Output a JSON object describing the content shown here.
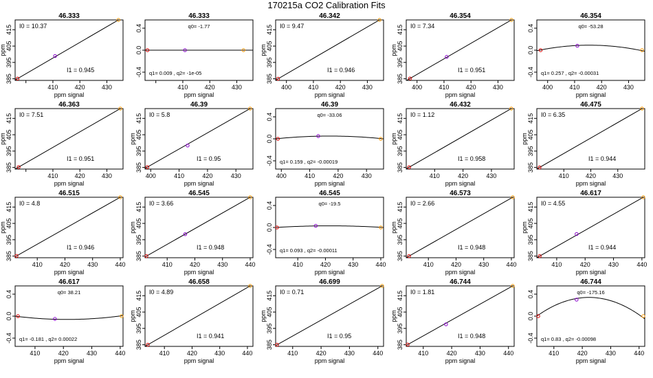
{
  "figure_title": "170215a   CO2 Calibration Fits",
  "colors": {
    "point_low": "#dd0000",
    "point_mid": "#8800cc",
    "point_high": "#ff9900",
    "line": "#000000"
  },
  "chart_data": [
    {
      "type": "line",
      "fit": "linear",
      "title": "46.333",
      "xlabel": "ppm signal",
      "ylabel": "ppm",
      "xlim": [
        396,
        436
      ],
      "ylim": [
        384,
        421
      ],
      "xticks": [
        400,
        410,
        420,
        430
      ],
      "xticklabels": [
        "",
        "410",
        "420",
        "430"
      ],
      "yticks": [
        385,
        395,
        405,
        415
      ],
      "points": [
        [
          396.9,
          385.1
        ],
        [
          410.8,
          398.9
        ],
        [
          434.3,
          421.0
        ]
      ],
      "annotations": {
        "i0": "I0 =  10.37",
        "i1": "I1 =  0.945"
      }
    },
    {
      "type": "line",
      "fit": "quadratic",
      "title": "46.333",
      "xlabel": "ppm signal",
      "ylabel": "",
      "xlim": [
        396,
        436
      ],
      "ylim": [
        -0.55,
        0.55
      ],
      "xticks": [
        400,
        410,
        420,
        430
      ],
      "xticklabels": [
        "",
        "410",
        "420",
        "430"
      ],
      "yticks": [
        -0.4,
        0.0,
        0.4
      ],
      "points": [
        [
          396.9,
          0.0
        ],
        [
          410.8,
          0.0
        ],
        [
          432.5,
          0.0
        ]
      ],
      "curve": [
        [
          396,
          0.0
        ],
        [
          410.8,
          0.0
        ],
        [
          436,
          0.0
        ]
      ],
      "annotations": {
        "q0": "q0= -1.77",
        "q12": "q1= 0.009 , q2= -1e-05"
      }
    },
    {
      "type": "line",
      "fit": "linear",
      "title": "46.342",
      "xlabel": "ppm signal",
      "ylabel": "ppm",
      "xlim": [
        396,
        436
      ],
      "ylim": [
        384,
        421
      ],
      "xticks": [
        400,
        410,
        420,
        430
      ],
      "xticklabels": [
        "400",
        "410",
        "420",
        "430"
      ],
      "yticks": [
        385,
        395,
        405,
        415
      ],
      "points": [
        [
          396.9,
          385.0
        ],
        [
          434.5,
          421.0
        ]
      ],
      "annotations": {
        "i0": "I0 =  9.47",
        "i1": "I1 =  0.946"
      }
    },
    {
      "type": "line",
      "fit": "linear",
      "title": "46.354",
      "xlabel": "ppm signal",
      "ylabel": "ppm",
      "xlim": [
        396,
        436
      ],
      "ylim": [
        384,
        421
      ],
      "xticks": [
        400,
        410,
        420,
        430
      ],
      "xticklabels": [
        "400",
        "410",
        "420",
        "430"
      ],
      "yticks": [
        385,
        395,
        405,
        415
      ],
      "points": [
        [
          397.4,
          385.2
        ],
        [
          411.0,
          398.4
        ],
        [
          435.0,
          421.0
        ]
      ],
      "annotations": {
        "i0": "I0 =  7.34",
        "i1": "I1 =  0.951"
      }
    },
    {
      "type": "line",
      "fit": "quadratic",
      "title": "46.354",
      "xlabel": "ppm signal",
      "ylabel": "",
      "xlim": [
        396,
        436
      ],
      "ylim": [
        -0.55,
        0.55
      ],
      "xticks": [
        400,
        410,
        420,
        430
      ],
      "xticklabels": [
        "400",
        "410",
        "420",
        "430"
      ],
      "yticks": [
        -0.4,
        0.0,
        0.4
      ],
      "points": [
        [
          397.4,
          0.0
        ],
        [
          411.0,
          0.08
        ],
        [
          435.0,
          0.0
        ]
      ],
      "curve": [
        [
          396,
          -0.01
        ],
        [
          414,
          0.09
        ],
        [
          436,
          -0.02
        ]
      ],
      "annotations": {
        "q0": "q0= -53.28",
        "q12": "q1= 0.257 , q2= -0.00031"
      }
    },
    {
      "type": "line",
      "fit": "linear",
      "title": "46.363",
      "xlabel": "ppm signal",
      "ylabel": "ppm",
      "xlim": [
        396,
        436
      ],
      "ylim": [
        384,
        421
      ],
      "xticks": [
        400,
        410,
        420,
        430
      ],
      "xticklabels": [
        "",
        "410",
        "420",
        "430"
      ],
      "yticks": [
        385,
        395,
        405,
        415
      ],
      "points": [
        [
          397.3,
          385.2
        ],
        [
          435.0,
          421.0
        ]
      ],
      "annotations": {
        "i0": "I0 =  7.51",
        "i1": "I1 =  0.951"
      }
    },
    {
      "type": "line",
      "fit": "linear",
      "title": "46.39",
      "xlabel": "ppm signal",
      "ylabel": "ppm",
      "xlim": [
        398,
        436
      ],
      "ylim": [
        384,
        421
      ],
      "xticks": [
        400,
        410,
        420,
        430
      ],
      "xticklabels": [
        "400",
        "410",
        "420",
        "430"
      ],
      "yticks": [
        385,
        395,
        405,
        415
      ],
      "points": [
        [
          398.8,
          385.2
        ],
        [
          413.0,
          398.4
        ],
        [
          435.0,
          421.0
        ]
      ],
      "annotations": {
        "i0": "I0 =  5.8",
        "i1": "I1 =  0.95"
      }
    },
    {
      "type": "line",
      "fit": "quadratic",
      "title": "46.39",
      "xlabel": "ppm signal",
      "ylabel": "",
      "xlim": [
        398,
        436
      ],
      "ylim": [
        -0.55,
        0.55
      ],
      "xticks": [
        400,
        410,
        420,
        430
      ],
      "xticklabels": [
        "400",
        "410",
        "420",
        "430"
      ],
      "yticks": [
        -0.4,
        0.0,
        0.4
      ],
      "points": [
        [
          398.8,
          0.0
        ],
        [
          413.0,
          0.05
        ],
        [
          435.0,
          0.0
        ]
      ],
      "curve": [
        [
          398,
          0.0
        ],
        [
          418,
          0.05
        ],
        [
          436,
          0.0
        ]
      ],
      "annotations": {
        "q0": "q0= -33.06",
        "q12": "q1= 0.159 , q2= -0.00019"
      }
    },
    {
      "type": "line",
      "fit": "linear",
      "title": "46.432",
      "xlabel": "ppm signal",
      "ylabel": "ppm",
      "xlim": [
        400,
        438
      ],
      "ylim": [
        384,
        421
      ],
      "xticks": [
        410,
        420,
        430
      ],
      "xticklabels": [
        "410",
        "420",
        "430"
      ],
      "yticks": [
        385,
        395,
        405,
        415
      ],
      "points": [
        [
          401.0,
          385.1
        ],
        [
          437.0,
          421.0
        ]
      ],
      "annotations": {
        "i0": "I0 =  1.12",
        "i1": "I1 =  0.958"
      }
    },
    {
      "type": "line",
      "fit": "linear",
      "title": "46.475",
      "xlabel": "ppm signal",
      "ylabel": "ppm",
      "xlim": [
        400,
        440
      ],
      "ylim": [
        384,
        421
      ],
      "xticks": [
        410,
        420,
        430
      ],
      "xticklabels": [
        "410",
        "420",
        "430"
      ],
      "yticks": [
        385,
        395,
        405,
        415
      ],
      "points": [
        [
          401.0,
          385.0
        ],
        [
          439.0,
          421.0
        ]
      ],
      "annotations": {
        "i0": "I0 =  6.35",
        "i1": "I1 =  0.944"
      }
    },
    {
      "type": "line",
      "fit": "linear",
      "title": "46.515",
      "xlabel": "ppm signal",
      "ylabel": "ppm",
      "xlim": [
        402,
        441
      ],
      "ylim": [
        384,
        421
      ],
      "xticks": [
        410,
        420,
        430,
        440
      ],
      "xticklabels": [
        "410",
        "420",
        "430",
        "440"
      ],
      "yticks": [
        385,
        395,
        405,
        415
      ],
      "points": [
        [
          402.5,
          385.1
        ],
        [
          440.0,
          421.0
        ]
      ],
      "annotations": {
        "i0": "I0 =  4.8",
        "i1": "I1 =  0.946"
      }
    },
    {
      "type": "line",
      "fit": "linear",
      "title": "46.545",
      "xlabel": "ppm signal",
      "ylabel": "ppm",
      "xlim": [
        402,
        441
      ],
      "ylim": [
        384,
        421
      ],
      "xticks": [
        410,
        420,
        430,
        440
      ],
      "xticklabels": [
        "410",
        "420",
        "430",
        "440"
      ],
      "yticks": [
        385,
        395,
        405,
        415
      ],
      "points": [
        [
          402.5,
          385.0
        ],
        [
          416.5,
          398.4
        ],
        [
          440.0,
          421.0
        ]
      ],
      "annotations": {
        "i0": "I0 =  3.66",
        "i1": "I1 =  0.948"
      }
    },
    {
      "type": "line",
      "fit": "quadratic",
      "title": "46.545",
      "xlabel": "ppm signal",
      "ylabel": "",
      "xlim": [
        402,
        441
      ],
      "ylim": [
        -0.55,
        0.55
      ],
      "xticks": [
        410,
        420,
        430,
        440
      ],
      "xticklabels": [
        "410",
        "420",
        "430",
        "440"
      ],
      "yticks": [
        -0.4,
        0.0,
        0.4
      ],
      "points": [
        [
          402.5,
          0.0
        ],
        [
          416.5,
          0.03
        ],
        [
          440.0,
          0.0
        ]
      ],
      "curve": [
        [
          402,
          0.0
        ],
        [
          420,
          0.03
        ],
        [
          441,
          0.0
        ]
      ],
      "annotations": {
        "q0": "q0= -19.5",
        "q12": "q1= 0.093 , q2= -0.00011"
      }
    },
    {
      "type": "line",
      "fit": "linear",
      "title": "46.573",
      "xlabel": "ppm signal",
      "ylabel": "ppm",
      "xlim": [
        402,
        441
      ],
      "ylim": [
        384,
        421
      ],
      "xticks": [
        410,
        420,
        430,
        440
      ],
      "xticklabels": [
        "410",
        "420",
        "430",
        "440"
      ],
      "yticks": [
        385,
        395,
        405,
        415
      ],
      "points": [
        [
          403.0,
          385.0
        ],
        [
          440.5,
          421.0
        ]
      ],
      "annotations": {
        "i0": "I0 =  2.66",
        "i1": "I1 =  0.948"
      }
    },
    {
      "type": "line",
      "fit": "linear",
      "title": "46.617",
      "xlabel": "ppm signal",
      "ylabel": "ppm",
      "xlim": [
        403,
        441
      ],
      "ylim": [
        384,
        421
      ],
      "xticks": [
        410,
        420,
        430,
        440
      ],
      "xticklabels": [
        "410",
        "420",
        "430",
        "440"
      ],
      "yticks": [
        385,
        395,
        405,
        415
      ],
      "points": [
        [
          404.0,
          385.0
        ],
        [
          417.0,
          398.5
        ],
        [
          440.5,
          421.0
        ]
      ],
      "annotations": {
        "i0": "I0 =  4.55",
        "i1": "I1 =  0.944"
      }
    },
    {
      "type": "line",
      "fit": "quadratic",
      "title": "46.617",
      "xlabel": "ppm signal",
      "ylabel": "",
      "xlim": [
        403,
        441
      ],
      "ylim": [
        -0.55,
        0.55
      ],
      "xticks": [
        410,
        420,
        430,
        440
      ],
      "xticklabels": [
        "410",
        "420",
        "430",
        "440"
      ],
      "yticks": [
        -0.4,
        0.0,
        0.4
      ],
      "points": [
        [
          404.0,
          0.0
        ],
        [
          417.0,
          -0.05
        ],
        [
          440.5,
          0.0
        ]
      ],
      "curve": [
        [
          403,
          0.0
        ],
        [
          422,
          -0.06
        ],
        [
          441,
          0.01
        ]
      ],
      "annotations": {
        "q0": "q0= 38.21",
        "q12": "q1= -0.181 , q2= 0.00022"
      }
    },
    {
      "type": "line",
      "fit": "linear",
      "title": "46.658",
      "xlabel": "ppm signal",
      "ylabel": "ppm",
      "xlim": [
        403,
        442
      ],
      "ylim": [
        384,
        421
      ],
      "xticks": [
        410,
        420,
        430,
        440
      ],
      "xticklabels": [
        "410",
        "420",
        "430",
        "440"
      ],
      "yticks": [
        385,
        395,
        405,
        415
      ],
      "points": [
        [
          404.0,
          385.0
        ],
        [
          441.0,
          421.0
        ]
      ],
      "annotations": {
        "i0": "I0 =  4.89",
        "i1": "I1 =  0.941"
      }
    },
    {
      "type": "line",
      "fit": "linear",
      "title": "46.699",
      "xlabel": "ppm signal",
      "ylabel": "ppm",
      "xlim": [
        404,
        442
      ],
      "ylim": [
        384,
        421
      ],
      "xticks": [
        410,
        420,
        430,
        440
      ],
      "xticklabels": [
        "410",
        "420",
        "430",
        "440"
      ],
      "yticks": [
        385,
        395,
        405,
        415
      ],
      "points": [
        [
          404.5,
          385.0
        ],
        [
          441.5,
          421.0
        ]
      ],
      "annotations": {
        "i0": "I0 =  0.71",
        "i1": "I1 =  0.95"
      }
    },
    {
      "type": "line",
      "fit": "linear",
      "title": "46.744",
      "xlabel": "ppm signal",
      "ylabel": "ppm",
      "xlim": [
        404,
        442
      ],
      "ylim": [
        384,
        421
      ],
      "xticks": [
        410,
        420,
        430,
        440
      ],
      "xticklabels": [
        "410",
        "420",
        "430",
        "440"
      ],
      "yticks": [
        385,
        395,
        405,
        415
      ],
      "points": [
        [
          404.5,
          385.1
        ],
        [
          418.0,
          397.5
        ],
        [
          441.5,
          421.0
        ]
      ],
      "annotations": {
        "i0": "I0 =  1.81",
        "i1": "I1 =  0.948"
      }
    },
    {
      "type": "line",
      "fit": "quadratic",
      "title": "46.744",
      "xlabel": "ppm signal",
      "ylabel": "",
      "xlim": [
        404,
        442
      ],
      "ylim": [
        -0.55,
        0.55
      ],
      "xticks": [
        410,
        420,
        430,
        440
      ],
      "xticklabels": [
        "410",
        "420",
        "430",
        "440"
      ],
      "yticks": [
        -0.4,
        0.0,
        0.4
      ],
      "points": [
        [
          404.5,
          0.0
        ],
        [
          418.0,
          0.3
        ],
        [
          441.5,
          0.0
        ]
      ],
      "curve": [
        [
          404,
          0.0
        ],
        [
          423,
          0.34
        ],
        [
          442,
          -0.05
        ]
      ],
      "annotations": {
        "q0": "q0= -175.16",
        "q12": "q1= 0.83 , q2= -0.00098"
      }
    }
  ]
}
